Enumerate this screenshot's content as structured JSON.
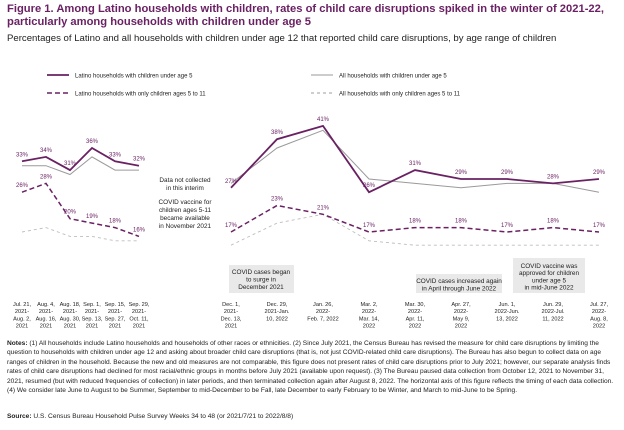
{
  "title": "Figure 1. Among Latino households with children, rates of child care disruptions spiked in the winter of 2021-22, particularly among households with children under age 5",
  "subtitle": "Percentages of Latino and all households with children under age 12 that reported child care disruptions, by age range of children",
  "notes_label": "Notes:",
  "notes_text": "(1) All households include Latino households and households of other races or ethnicities. (2) Since July 2021, the Census Bureau has revised the measure for child care disruptions by limiting the question to households with children under age 12 and asking about broader child care disruptions (that is, not just COVID-related child care disruptions). The Bureau has also begun to collect data on age ranges of children in the household. Because the new and old measures are not comparable, this figure does not present rates of child care disruptions prior to July 2021; however, our separate analysis finds rates of child care disruptions had declined for most racial/ethnic groups in months before July 2021 (available upon request). (3) The Bureau paused data collection from October 12, 2021 to November 31, 2021, resumed (but with reduced frequencies of collection) in later periods, and then terminated collection again after August 8, 2022. The horizontal axis of this figure reflects the timing of each data collection. (4) We consider late June to August to be Summer, September to mid-December to be Fall, late December to early February to be Winter, and March to mid-June to be Spring.",
  "source_label": "Source:",
  "source_text": "U.S. Census Bureau Household Pulse Survey Weeks 34 to 48 (or 2021/7/21 to 2022/8/8)",
  "colors": {
    "latino": "#6a2163",
    "all": "#9a9a9a",
    "annotation_box": "#e9e9e9"
  },
  "chart_data": {
    "type": "line",
    "title": "",
    "xlabel": "",
    "ylabel": "",
    "categories": [
      "Jul. 21, 2021- Aug. 2, 2021",
      "Aug. 4, 2021- Aug. 16, 2021",
      "Aug. 18, 2021- Aug. 30, 2021",
      "Sep. 1, 2021- Sep. 13, 2021",
      "Sep. 15, 2021- Sep. 27, 2021",
      "Sep. 29, 2021- Oct. 11, 2021",
      "Dec. 1, 2021- Dec. 13, 2021",
      "Dec. 29, 2021-Jan. 10, 2022",
      "Jan. 26, 2022- Feb. 7, 2022",
      "Mar. 2, 2022- Mar. 14, 2022",
      "Mar. 30, 2022- Apr. 11, 2022",
      "Apr. 27, 2022- May 9, 2022",
      "Jun. 1, 2022- Jun. 13, 2022",
      "Jun. 29, 2022-Jul. 11, 2022",
      "Jul. 27, 2022- Aug. 8, 2022"
    ],
    "series": [
      {
        "name": "Latino households with children under age 5",
        "style": "solid",
        "color": "#6a2163",
        "values": [
          33,
          34,
          31,
          36,
          33,
          32,
          27,
          38,
          41,
          26,
          31,
          29,
          29,
          28,
          29
        ],
        "labels": [
          "33%",
          "34%",
          "31%",
          "36%",
          "33%",
          "32%",
          "27%",
          "38%",
          "41%",
          "26%",
          "31%",
          "29%",
          "29%",
          "28%",
          "29%"
        ]
      },
      {
        "name": "All households with children under age 5",
        "style": "solid",
        "color": "#9a9a9a",
        "values": [
          32,
          32,
          30,
          34,
          31,
          31,
          28,
          36,
          40,
          29,
          28,
          27,
          28,
          28,
          26
        ]
      },
      {
        "name": "Latino households with only children ages 5 to 11",
        "style": "dashed",
        "color": "#6a2163",
        "values": [
          26,
          28,
          20,
          19,
          18,
          16,
          17,
          23,
          21,
          17,
          18,
          18,
          17,
          18,
          17
        ],
        "labels": [
          "26%",
          "28%",
          "20%",
          "19%",
          "18%",
          "16%",
          "17%",
          "23%",
          "21%",
          "17%",
          "18%",
          "18%",
          "17%",
          "18%",
          "17%"
        ]
      },
      {
        "name": "All households with only children ages 5 to 11",
        "style": "dashed",
        "color": "#bdbdbd",
        "values": [
          17,
          18,
          16,
          16,
          15,
          15,
          14,
          19,
          21,
          15,
          14,
          14,
          14,
          14,
          14
        ]
      }
    ],
    "ylim": [
      5,
      48
    ],
    "grid": false,
    "legend_position": "top",
    "annotations": {
      "gap_note": "Data not collected in this interim",
      "gap_vaccine": "COVID vaccine for children ages 5-11 became available in November 2021",
      "covid_surge": "COVID cases began to surge in December 2021",
      "cases_increased": "COVID cases increased again in April through June 2022",
      "vaccine_under5": "COVID vaccine was approved for children under age 5 in mid-June 2022"
    }
  }
}
